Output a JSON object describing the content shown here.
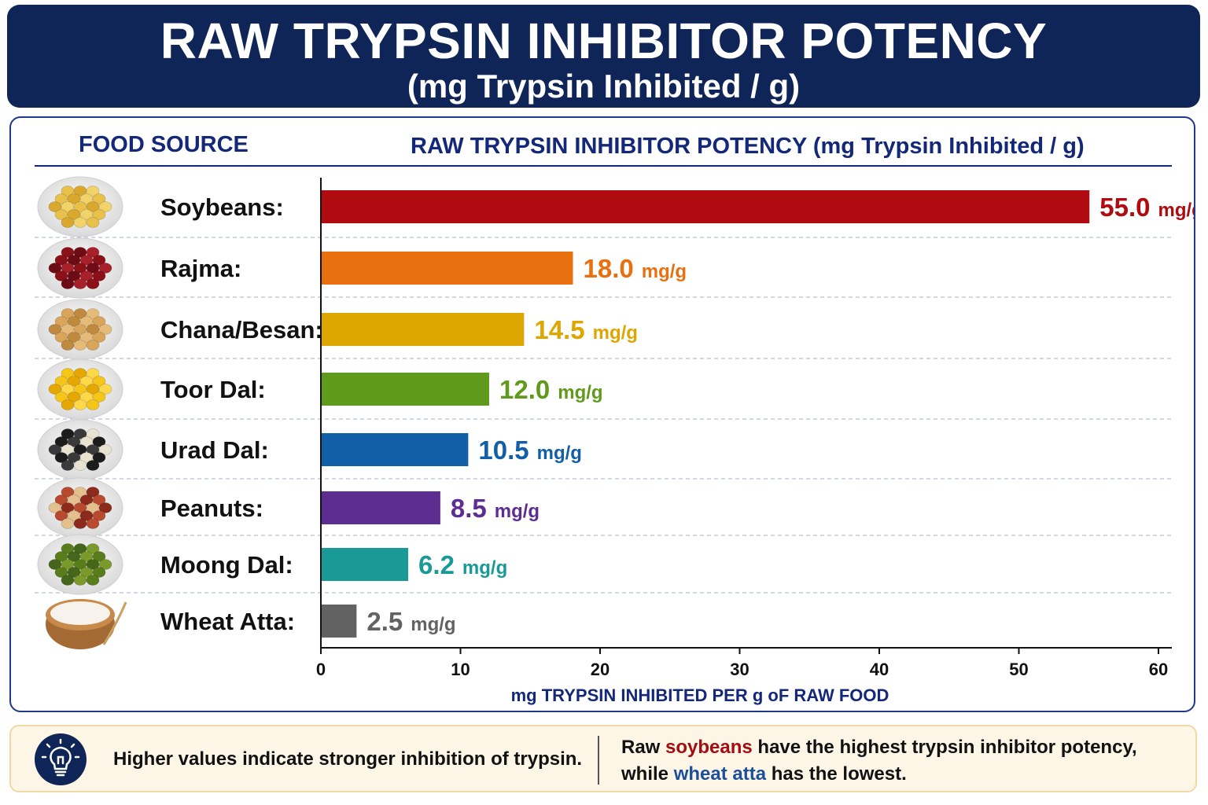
{
  "header": {
    "title": "RAW TRYPSIN INHIBITOR POTENCY",
    "subtitle": "(mg Trypsin Inhibited / g)"
  },
  "table_header": {
    "food_source": "FOOD SOURCE",
    "potency": "RAW TRYPSIN INHIBITOR POTENCY",
    "potency_unit": "(mg Trypsin Inhibited / g)"
  },
  "chart_data": {
    "type": "bar",
    "orientation": "horizontal",
    "categories": [
      "Soybeans:",
      "Rajma:",
      "Chana/Besan:",
      "Toor Dal:",
      "Urad Dal:",
      "Peanuts:",
      "Moong Dal:",
      "Wheat Atta:"
    ],
    "values": [
      55.0,
      18.0,
      14.5,
      12.0,
      10.5,
      8.5,
      6.2,
      2.5
    ],
    "value_labels": [
      "55.0",
      "18.0",
      "14.5",
      "12.0",
      "10.5",
      "8.5",
      "6.2",
      "2.5"
    ],
    "value_unit": "mg/g",
    "colors": [
      "#b00b10",
      "#e8700e",
      "#dda600",
      "#5f9a1c",
      "#125fa8",
      "#5e2d91",
      "#1a9a96",
      "#626262"
    ],
    "xlim": [
      0,
      60
    ],
    "xticks": [
      0,
      10,
      20,
      30,
      40,
      50,
      60
    ],
    "xtick_labels": [
      "0",
      "10",
      "20",
      "30",
      "40",
      "50",
      "60"
    ],
    "xlabel": "mg TRYPSIN INHIBITED PER g oF RAW FOOD",
    "grid": "dashed horizontal row separators",
    "legend": "none"
  },
  "food_icons": [
    "soybeans-bowl-icon",
    "rajma-bowl-icon",
    "chana-bowl-icon",
    "toor-dal-bowl-icon",
    "urad-dal-bowl-icon",
    "peanuts-bowl-icon",
    "moong-dal-bowl-icon",
    "wheat-atta-bowl-icon"
  ],
  "footer": {
    "icon": "lightbulb-icon",
    "note": "Higher values indicate stronger inhibition of trypsin.",
    "conclusion": {
      "part1": "Raw ",
      "highlight1": "soybeans",
      "part2": " have the highest trypsin inhibitor potency,",
      "part3": "while ",
      "highlight2": "wheat atta",
      "part4": " has the lowest."
    }
  },
  "colors": {
    "title_bg": "#0f2457",
    "header_text": "#14287a",
    "footer_bg": "#fdf6e6",
    "highlight_red": "#a30d12",
    "highlight_blue": "#1c4f9c"
  }
}
